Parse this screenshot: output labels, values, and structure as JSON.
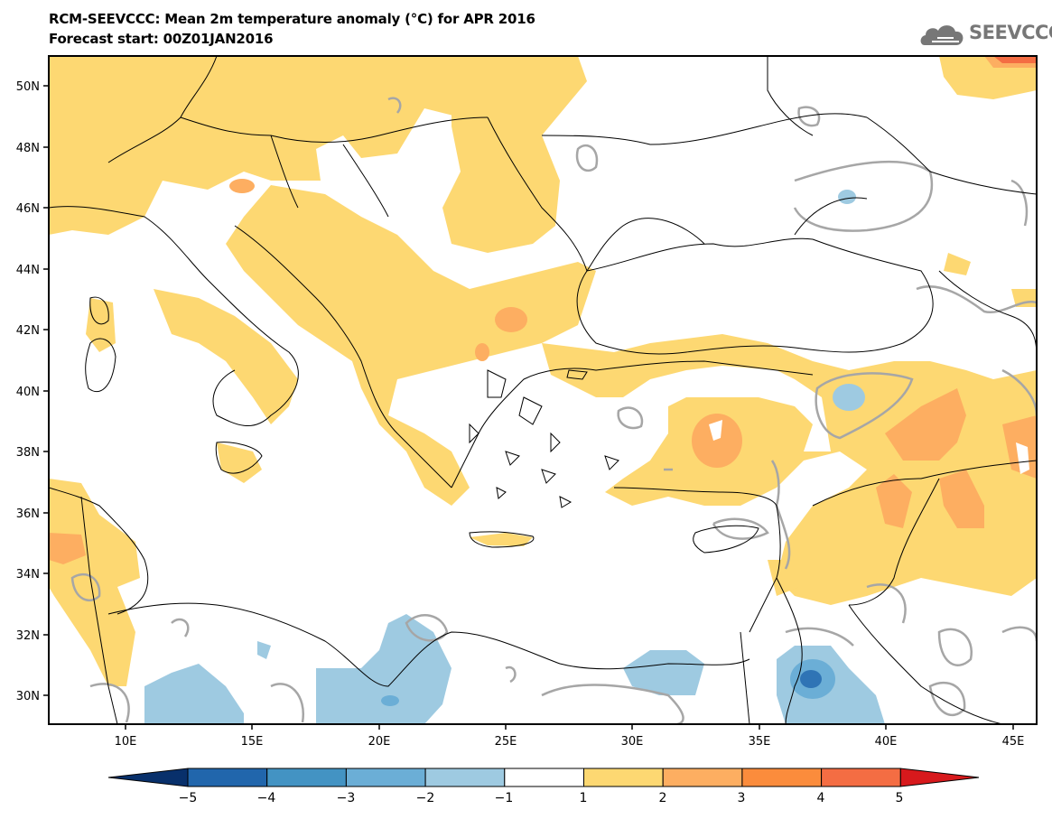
{
  "header": {
    "title": "RCM-SEEVCCC: Mean 2m temperature anomaly (°C) for APR 2016",
    "subtitle": "Forecast start: 00Z01JAN2016",
    "logo_text": "SEEVCCC"
  },
  "map": {
    "lat_labels": [
      "50N",
      "48N",
      "46N",
      "44N",
      "42N",
      "40N",
      "38N",
      "36N",
      "34N",
      "32N",
      "30N"
    ],
    "lon_labels": [
      "10E",
      "15E",
      "20E",
      "25E",
      "30E",
      "35E",
      "40E",
      "45E"
    ]
  },
  "colorbar": {
    "tick_labels": [
      "−5",
      "−4",
      "−3",
      "−2",
      "−1",
      "1",
      "2",
      "3",
      "4",
      "5"
    ],
    "colors": [
      "#08306b",
      "#2166ac",
      "#4393c3",
      "#6baed6",
      "#9ecae1",
      "#ffffff",
      "#fdd872",
      "#fdae61",
      "#fb8c3c",
      "#f46d43",
      "#d7191c"
    ]
  },
  "colors": {
    "warm_1": "#fdd872",
    "warm_2": "#fdae61",
    "warm_3": "#fb8c3c",
    "cold_1": "#9ecae1",
    "cold_2": "#6baed6",
    "cold_3": "#3a7fc1",
    "contour": "#a6a6a6"
  }
}
